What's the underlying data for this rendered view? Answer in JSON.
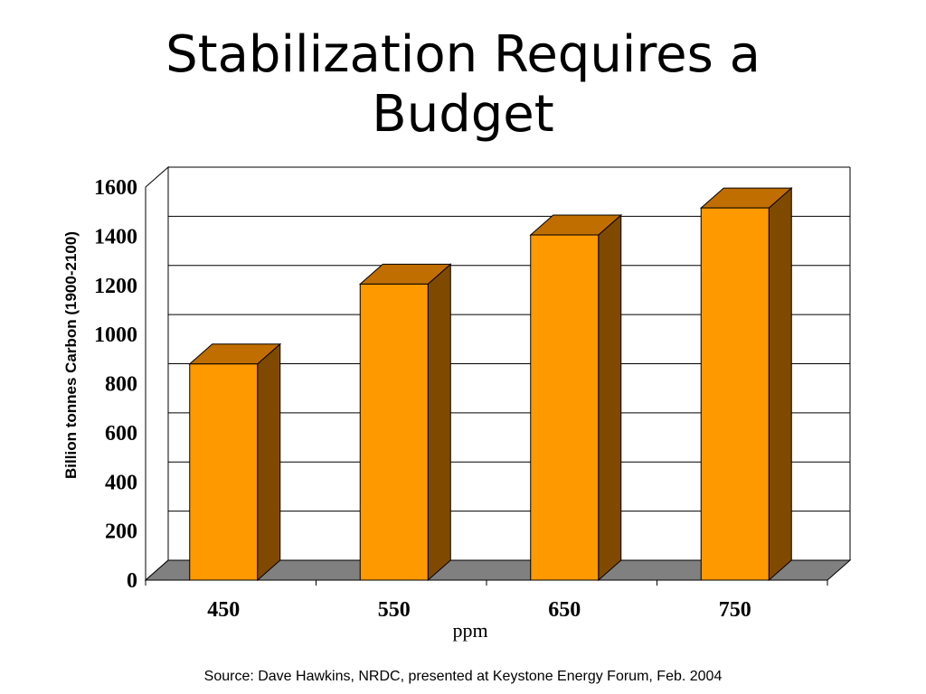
{
  "slide": {
    "title_line1": "Stabilization Requires a",
    "title_line2": "Budget",
    "source": "Source: Dave Hawkins, NRDC, presented at Keystone Energy Forum, Feb. 2004"
  },
  "chart_data": {
    "type": "bar",
    "categories": [
      "450",
      "550",
      "650",
      "750"
    ],
    "values": [
      880,
      1205,
      1405,
      1515
    ],
    "xlabel": "ppm",
    "ylabel": "Billion tonnes Carbon (1900-2100)",
    "ylim": [
      0,
      1600
    ],
    "yticks": [
      0,
      200,
      400,
      600,
      800,
      1000,
      1200,
      1400,
      1600
    ],
    "grid": true,
    "legend": "none",
    "three_d": true,
    "colors": {
      "bar_front": "#FF9900",
      "bar_top": "#C06E00",
      "bar_side": "#7F4A00",
      "floor": "#808080",
      "grid": "#000000"
    }
  }
}
